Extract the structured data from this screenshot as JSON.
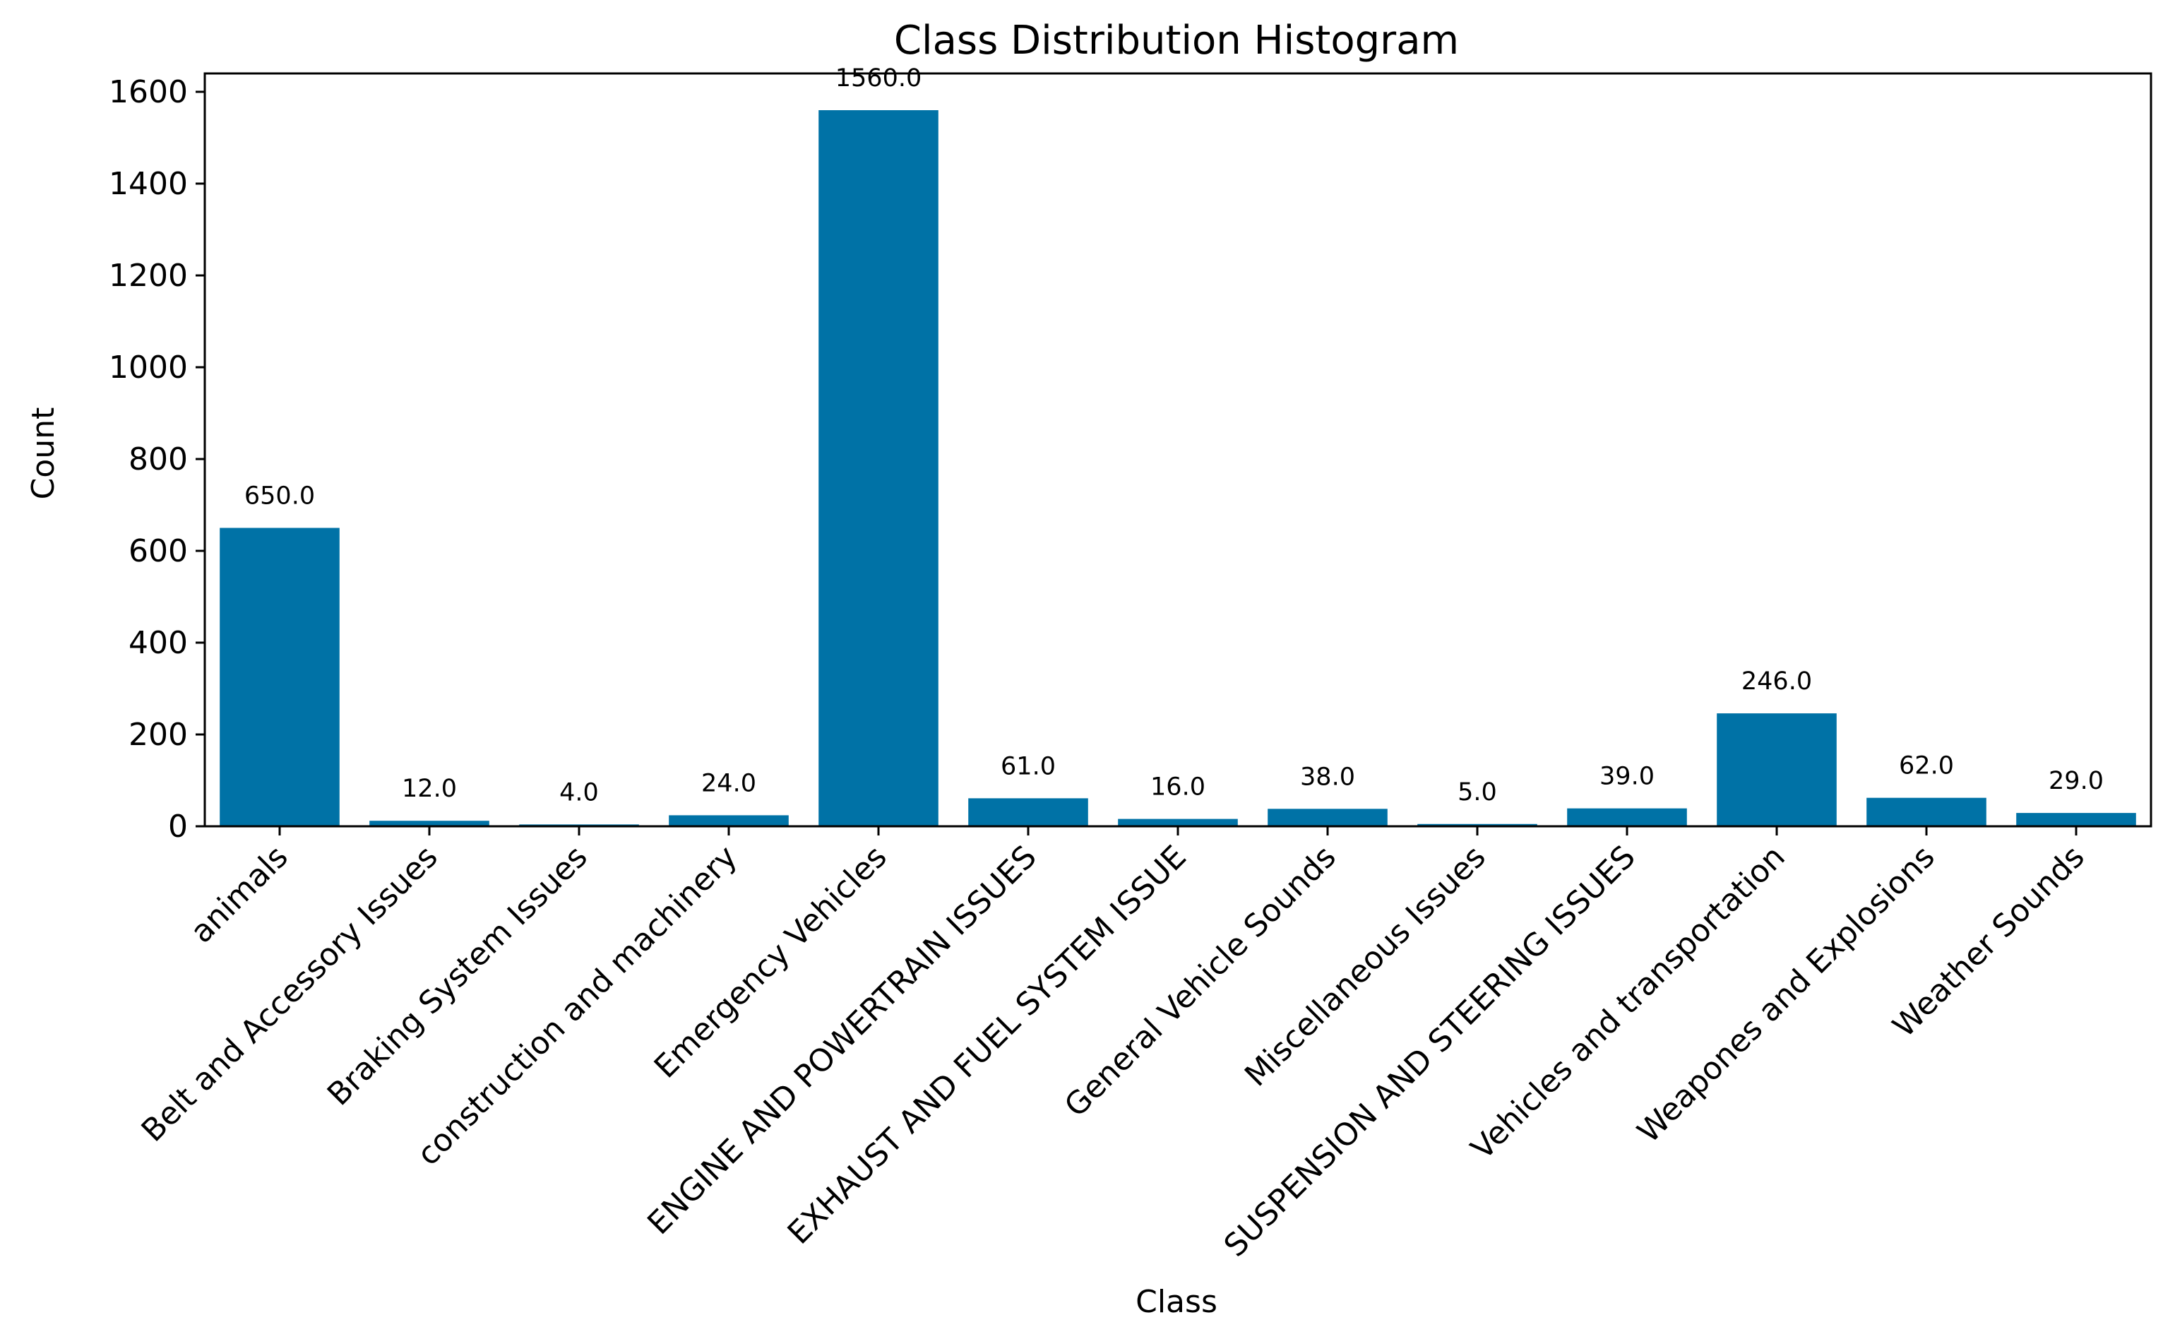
{
  "chart_data": {
    "type": "bar",
    "title": "Class Distribution Histogram",
    "xlabel": "Class",
    "ylabel": "Count",
    "ylim": [
      0,
      1640
    ],
    "yticks": [
      0,
      200,
      400,
      600,
      800,
      1000,
      1200,
      1400,
      1600
    ],
    "grid": false,
    "bar_color": "#0072a6",
    "categories": [
      "animals",
      "Belt and Accessory Issues",
      "Braking System Issues",
      "construction and machinery",
      "Emergency Vehicles",
      "ENGINE AND POWERTRAIN ISSUES",
      "EXHAUST AND FUEL SYSTEM ISSUE",
      "General Vehicle Sounds",
      "Miscellaneous Issues",
      "SUSPENSION AND STEERING ISSUES",
      "Vehicles and transportation",
      "Weapones and Explosions",
      "Weather Sounds"
    ],
    "values": [
      650,
      12,
      4,
      24,
      1560,
      61,
      16,
      38,
      5,
      39,
      246,
      62,
      29
    ],
    "value_labels": [
      "650.0",
      "12.0",
      "4.0",
      "24.0",
      "1560.0",
      "61.0",
      "16.0",
      "38.0",
      "5.0",
      "39.0",
      "246.0",
      "62.0",
      "29.0"
    ]
  }
}
